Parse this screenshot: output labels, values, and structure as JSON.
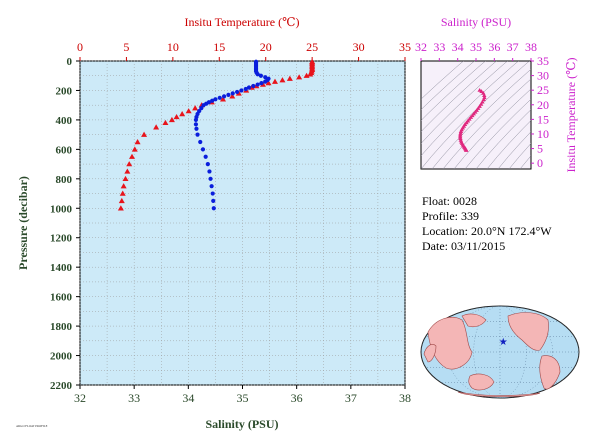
{
  "chart_data": [
    {
      "type": "scatter",
      "top_axis_label": "Insitu Temperature (℃)",
      "xlabel": "Salinity (PSU)",
      "ylabel": "Pressure (decibar)",
      "temperature_axis": {
        "range": [
          0,
          35
        ],
        "ticks": [
          "0",
          "5",
          "10",
          "15",
          "20",
          "25",
          "30",
          "35"
        ]
      },
      "salinity_axis": {
        "range": [
          32,
          38
        ],
        "ticks": [
          "32",
          "33",
          "34",
          "35",
          "36",
          "37",
          "38"
        ]
      },
      "pressure_axis": {
        "range": [
          0,
          2200
        ],
        "inverted": true,
        "ticks": [
          "0",
          "200",
          "400",
          "600",
          "800",
          "1000",
          "1200",
          "1400",
          "1600",
          "1800",
          "2000",
          "2200"
        ]
      },
      "colors": {
        "temperature": "#e8141c",
        "salinity": "#0a1edc",
        "plot_bg": "#cdeaf8",
        "temp_axis": "#cc0000",
        "axis_text": "#2b4a2b"
      },
      "temperature_profile": {
        "pressure": [
          5,
          10,
          20,
          30,
          40,
          50,
          60,
          70,
          80,
          90,
          100,
          110,
          120,
          130,
          140,
          150,
          160,
          170,
          180,
          200,
          220,
          240,
          260,
          280,
          300,
          320,
          340,
          360,
          380,
          400,
          420,
          450,
          500,
          550,
          600,
          650,
          700,
          750,
          800,
          850,
          900,
          950,
          1000
        ],
        "value": [
          25.0,
          25.0,
          25.0,
          25.0,
          25.0,
          25.0,
          25.0,
          24.95,
          24.9,
          24.8,
          24.4,
          23.6,
          22.6,
          21.8,
          21.0,
          20.3,
          19.7,
          19.0,
          18.5,
          17.9,
          17.1,
          16.4,
          15.4,
          14.2,
          13.1,
          12.4,
          11.7,
          11.0,
          10.4,
          9.9,
          9.2,
          8.2,
          6.9,
          6.2,
          5.9,
          5.6,
          5.3,
          5.1,
          4.9,
          4.7,
          4.6,
          4.5,
          4.4
        ]
      },
      "salinity_profile": {
        "pressure": [
          5,
          10,
          20,
          30,
          40,
          50,
          60,
          70,
          80,
          90,
          100,
          110,
          120,
          130,
          140,
          150,
          160,
          170,
          180,
          190,
          200,
          210,
          220,
          230,
          240,
          250,
          260,
          270,
          280,
          290,
          300,
          320,
          340,
          360,
          380,
          400,
          430,
          460,
          500,
          550,
          600,
          650,
          700,
          750,
          800,
          850,
          900,
          950,
          1000
        ],
        "value": [
          35.25,
          35.25,
          35.25,
          35.25,
          35.25,
          35.25,
          35.25,
          35.25,
          35.26,
          35.28,
          35.34,
          35.42,
          35.48,
          35.46,
          35.42,
          35.35,
          35.28,
          35.2,
          35.12,
          35.06,
          34.98,
          34.9,
          34.82,
          34.74,
          34.66,
          34.58,
          34.5,
          34.44,
          34.38,
          34.33,
          34.28,
          34.24,
          34.2,
          34.17,
          34.15,
          34.14,
          34.14,
          34.15,
          34.17,
          34.22,
          34.27,
          34.32,
          34.36,
          34.39,
          34.41,
          34.43,
          34.45,
          34.46,
          34.47
        ]
      }
    },
    {
      "type": "scatter",
      "xlabel": "Salinity (PSU)",
      "ylabel": "Insitu Temperature (℃)",
      "salinity_axis": {
        "range": [
          32,
          38
        ],
        "ticks": [
          "32",
          "33",
          "34",
          "35",
          "36",
          "37",
          "38"
        ]
      },
      "temperature_axis": {
        "range": [
          -2,
          35
        ],
        "ticks": [
          "0",
          "5",
          "10",
          "15",
          "20",
          "25",
          "30",
          "35"
        ]
      },
      "colors": {
        "points": "#e0287f",
        "axis": "#cc22cc",
        "bg": "#f6f0fa",
        "isopycnals": "#8a8a9a"
      },
      "ts_points": {
        "salinity": [
          35.2,
          35.3,
          35.4,
          35.45,
          35.46,
          35.42,
          35.35,
          35.28,
          35.2,
          35.12,
          35.04,
          34.96,
          34.88,
          34.8,
          34.72,
          34.64,
          34.56,
          34.48,
          34.4,
          34.34,
          34.28,
          34.22,
          34.18,
          34.16,
          34.14,
          34.14,
          34.15,
          34.17,
          34.2,
          34.24,
          34.28,
          34.32,
          34.36,
          34.4,
          34.43,
          34.46,
          34.47
        ],
        "temperature": [
          25,
          24.6,
          24,
          23.2,
          22.5,
          21.8,
          21,
          20.2,
          19.5,
          18.8,
          18.1,
          17.5,
          16.9,
          16.3,
          15.7,
          15.1,
          14.5,
          13.9,
          13.3,
          12.7,
          12.1,
          11.5,
          10.9,
          10.3,
          9.7,
          9.1,
          8.5,
          7.9,
          7.3,
          6.8,
          6.3,
          5.9,
          5.5,
          5.2,
          4.9,
          4.6,
          4.4
        ]
      }
    }
  ],
  "info": {
    "float_label": "Float:",
    "float_value": "0028",
    "profile_label": "Profile:",
    "profile_value": "339",
    "location_label": "Location:",
    "location_value": "20.0°N  172.4°W",
    "date_label": "Date:",
    "date_value": "03/11/2015"
  },
  "map": {
    "float_position": {
      "lat": 20.0,
      "lon": -172.4
    },
    "colors": {
      "ocean": "#b6ddf3",
      "land": "#f4b6b6",
      "marker": "#1020c0"
    }
  },
  "footnote": "ARGO FLOAT PROFILE"
}
